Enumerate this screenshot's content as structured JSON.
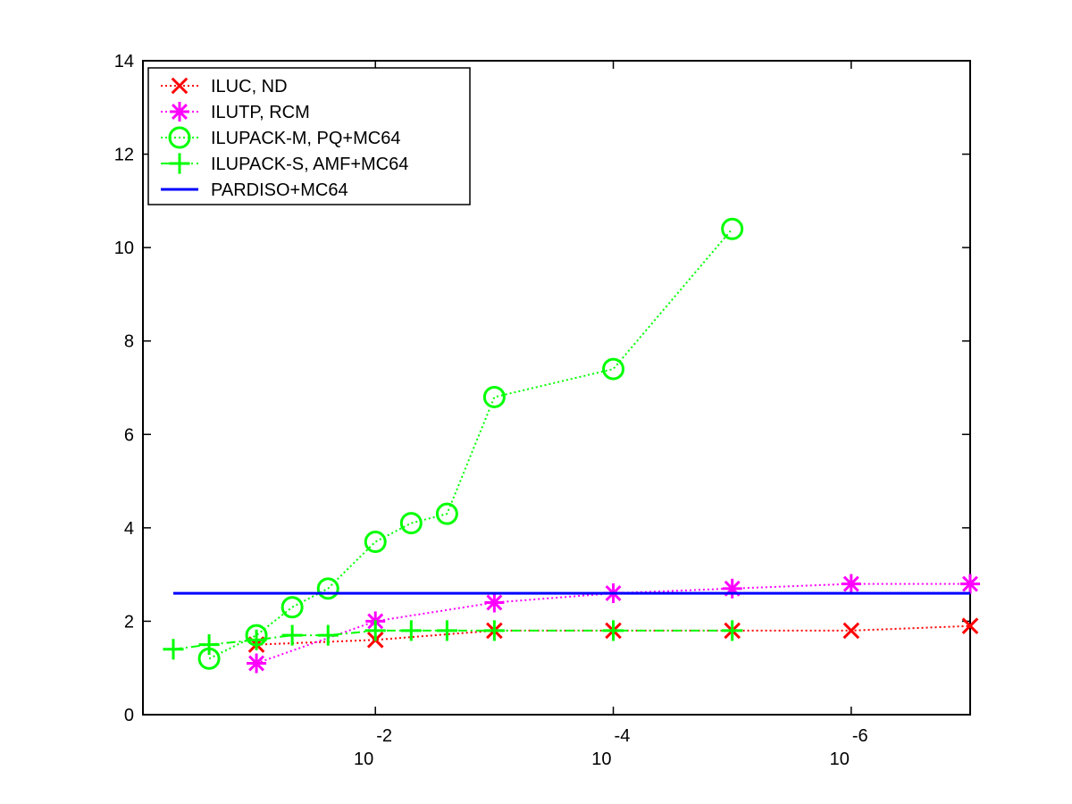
{
  "chart_data": {
    "type": "line",
    "title": "",
    "xlabel": "",
    "ylabel": "",
    "x_scale": "log",
    "x_direction": "reversed",
    "xlim": [
      0.9,
      1e-07
    ],
    "ylim": [
      0,
      14
    ],
    "xticks": [
      {
        "value": 0.01,
        "base": "10",
        "exponent": "-2"
      },
      {
        "value": 0.0001,
        "base": "10",
        "exponent": "-4"
      },
      {
        "value": 1e-06,
        "base": "10",
        "exponent": "-6"
      }
    ],
    "yticks": [
      {
        "value": 0,
        "label": "0"
      },
      {
        "value": 2,
        "label": "2"
      },
      {
        "value": 4,
        "label": "4"
      },
      {
        "value": 6,
        "label": "6"
      },
      {
        "value": 8,
        "label": "8"
      },
      {
        "value": 10,
        "label": "10"
      },
      {
        "value": 12,
        "label": "12"
      },
      {
        "value": 14,
        "label": "14"
      }
    ],
    "legend_position": "top-left",
    "series": [
      {
        "name": "ILUC,  ND",
        "color": "#ff0000",
        "marker": "x",
        "line_style": "dotted",
        "x": [
          0.1,
          0.01,
          0.001,
          0.0001,
          1e-05,
          1e-06,
          1e-07
        ],
        "y": [
          1.5,
          1.6,
          1.8,
          1.8,
          1.8,
          1.8,
          1.9
        ]
      },
      {
        "name": "ILUTP, RCM",
        "color": "#ff00ff",
        "marker": "asterisk",
        "line_style": "dotted",
        "x": [
          0.1,
          0.01,
          0.001,
          0.0001,
          1e-05,
          1e-06,
          1e-07
        ],
        "y": [
          1.1,
          2.0,
          2.4,
          2.6,
          2.7,
          2.8,
          2.8
        ]
      },
      {
        "name": "ILUPACK-M, PQ+MC64",
        "color": "#00ff00",
        "marker": "circle",
        "line_style": "dotted",
        "x": [
          0.25,
          0.1,
          0.05,
          0.025,
          0.01,
          0.005,
          0.0025,
          0.001,
          0.0001,
          1e-05
        ],
        "y": [
          1.2,
          1.7,
          2.3,
          2.7,
          3.7,
          4.1,
          4.3,
          6.8,
          7.4,
          10.4
        ]
      },
      {
        "name": "ILUPACK-S, AMF+MC64",
        "color": "#00ff00",
        "marker": "plus",
        "line_style": "dash-dot",
        "x": [
          0.5,
          0.25,
          0.1,
          0.05,
          0.025,
          0.01,
          0.005,
          0.0025,
          0.001,
          0.0001,
          1e-05
        ],
        "y": [
          1.4,
          1.5,
          1.6,
          1.7,
          1.7,
          1.8,
          1.8,
          1.8,
          1.8,
          1.8,
          1.8
        ]
      },
      {
        "name": "PARDISO+MC64",
        "color": "#0000ff",
        "marker": "none",
        "line_style": "solid",
        "x": [
          0.5,
          1e-07
        ],
        "y": [
          2.6,
          2.6
        ]
      }
    ]
  }
}
